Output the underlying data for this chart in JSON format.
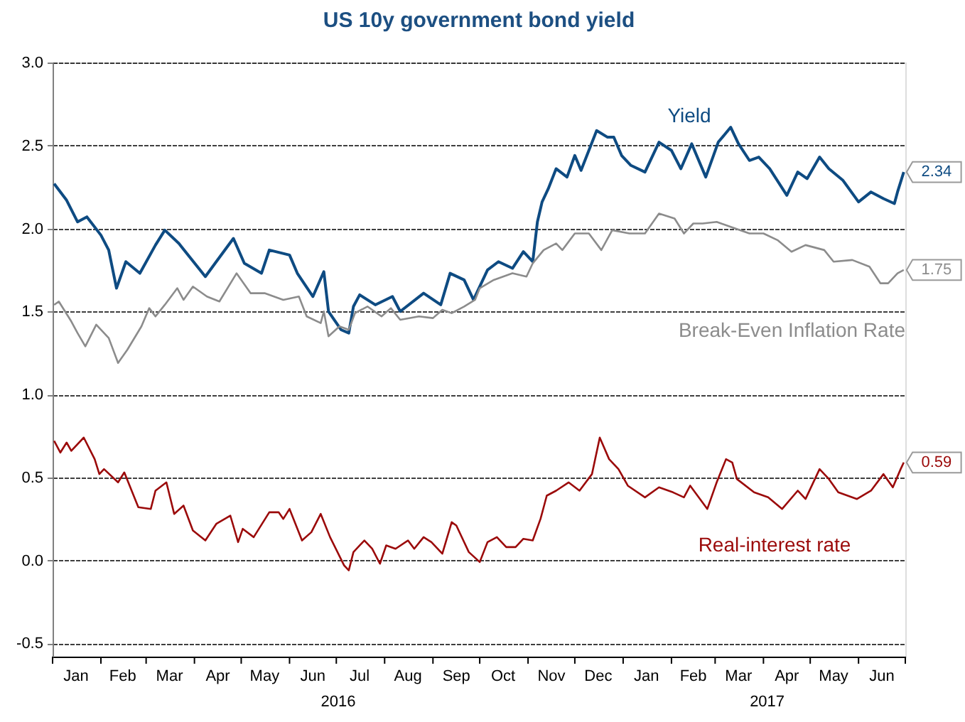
{
  "chart_data": {
    "type": "line",
    "title": "US 10y government bond yield",
    "xlim": [
      "2016-01-01",
      "2017-07-01"
    ],
    "xticks": [
      {
        "value": "2016-01-01",
        "label": null
      },
      {
        "value": "2016-02-01",
        "label": null
      },
      {
        "value": "2016-03-01",
        "label": null
      },
      {
        "value": "2016-04-01",
        "label": null
      },
      {
        "value": "2016-05-01",
        "label": null
      },
      {
        "value": "2016-06-01",
        "label": null
      },
      {
        "value": "2016-07-01",
        "label": null
      },
      {
        "value": "2016-08-01",
        "label": null
      },
      {
        "value": "2016-09-01",
        "label": null
      },
      {
        "value": "2016-10-01",
        "label": null
      },
      {
        "value": "2016-11-01",
        "label": null
      },
      {
        "value": "2016-12-01",
        "label": null
      },
      {
        "value": "2017-01-01",
        "label": null
      },
      {
        "value": "2017-02-01",
        "label": null
      },
      {
        "value": "2017-03-01",
        "label": null
      },
      {
        "value": "2017-04-01",
        "label": null
      },
      {
        "value": "2017-05-01",
        "label": null
      },
      {
        "value": "2017-06-01",
        "label": null
      },
      {
        "value": "2017-07-01",
        "label": null
      },
      {
        "value": "2016-01-16",
        "label": "Jan"
      },
      {
        "value": "2016-02-15",
        "label": "Feb"
      },
      {
        "value": "2016-03-16",
        "label": "Mar"
      },
      {
        "value": "2016-04-16",
        "label": "Apr"
      },
      {
        "value": "2016-05-16",
        "label": "May"
      },
      {
        "value": "2016-06-16",
        "label": "Jun"
      },
      {
        "value": "2016-07-16",
        "label": "Jul"
      },
      {
        "value": "2016-08-16",
        "label": "Aug"
      },
      {
        "value": "2016-09-16",
        "label": "Sep"
      },
      {
        "value": "2016-10-16",
        "label": "Oct"
      },
      {
        "value": "2016-11-16",
        "label": "Nov"
      },
      {
        "value": "2016-12-16",
        "label": "Dec"
      },
      {
        "value": "2017-01-16",
        "label": "Jan"
      },
      {
        "value": "2017-02-15",
        "label": "Feb"
      },
      {
        "value": "2017-03-16",
        "label": "Mar"
      },
      {
        "value": "2017-04-16",
        "label": "Apr"
      },
      {
        "value": "2017-05-16",
        "label": "May"
      },
      {
        "value": "2017-06-16",
        "label": "Jun"
      }
    ],
    "ylim": [
      -0.58,
      3.0
    ],
    "yticks": [
      {
        "value": -0.5,
        "label": "-0.5"
      },
      {
        "value": 0,
        "label": "0.0"
      },
      {
        "value": 0.5,
        "label": "0.5"
      },
      {
        "value": 1,
        "label": "1.0"
      },
      {
        "value": 1.5,
        "label": "1.5"
      },
      {
        "value": 2,
        "label": "2.0"
      },
      {
        "value": 2.5,
        "label": "2.5"
      },
      {
        "value": 3,
        "label": "3.0"
      }
    ],
    "grid": "y",
    "series": [
      {
        "name": "Yield",
        "color": "#0e4b82",
        "x": [
          "2016-01-02",
          "2016-01-10",
          "2016-01-17",
          "2016-01-23",
          "2016-02-01",
          "2016-02-06",
          "2016-02-11",
          "2016-02-17",
          "2016-02-26",
          "2016-03-07",
          "2016-03-13",
          "2016-03-22",
          "2016-04-08",
          "2016-04-15",
          "2016-04-26",
          "2016-05-03",
          "2016-05-14",
          "2016-05-19",
          "2016-06-01",
          "2016-06-06",
          "2016-06-16",
          "2016-06-23",
          "2016-06-26",
          "2016-07-04",
          "2016-07-09",
          "2016-07-12",
          "2016-07-16",
          "2016-07-26",
          "2016-08-06",
          "2016-08-11",
          "2016-08-26",
          "2016-09-06",
          "2016-09-12",
          "2016-09-21",
          "2016-09-27",
          "2016-10-06",
          "2016-10-13",
          "2016-10-22",
          "2016-10-29",
          "2016-11-04",
          "2016-11-07",
          "2016-11-10",
          "2016-11-14",
          "2016-11-19",
          "2016-11-26",
          "2016-12-01",
          "2016-12-05",
          "2016-12-15",
          "2016-12-22",
          "2016-12-26",
          "2016-12-31",
          "2017-01-06",
          "2017-01-15",
          "2017-01-24",
          "2017-02-01",
          "2017-02-07",
          "2017-02-14",
          "2017-02-23",
          "2017-03-03",
          "2017-03-11",
          "2017-03-16",
          "2017-03-23",
          "2017-03-29",
          "2017-04-05",
          "2017-04-16",
          "2017-04-23",
          "2017-04-29",
          "2017-05-07",
          "2017-05-13",
          "2017-05-22",
          "2017-06-01",
          "2017-06-09",
          "2017-06-17",
          "2017-06-24",
          "2017-06-26",
          "2017-06-30"
        ],
        "values": [
          2.27,
          2.17,
          2.04,
          2.07,
          1.96,
          1.87,
          1.64,
          1.8,
          1.73,
          1.9,
          1.99,
          1.91,
          1.71,
          1.8,
          1.94,
          1.79,
          1.73,
          1.87,
          1.84,
          1.73,
          1.59,
          1.74,
          1.5,
          1.39,
          1.37,
          1.53,
          1.6,
          1.54,
          1.59,
          1.5,
          1.61,
          1.54,
          1.73,
          1.69,
          1.57,
          1.75,
          1.8,
          1.76,
          1.86,
          1.8,
          2.04,
          2.16,
          2.24,
          2.36,
          2.31,
          2.44,
          2.35,
          2.59,
          2.55,
          2.55,
          2.44,
          2.38,
          2.34,
          2.52,
          2.47,
          2.36,
          2.51,
          2.31,
          2.52,
          2.61,
          2.51,
          2.41,
          2.43,
          2.36,
          2.2,
          2.34,
          2.3,
          2.43,
          2.36,
          2.29,
          2.16,
          2.22,
          2.18,
          2.15,
          2.22,
          2.34
        ]
      },
      {
        "name": "Break-Even Inflation Rate",
        "color": "#8c8c8c",
        "x": [
          "2016-01-02",
          "2016-01-05",
          "2016-01-13",
          "2016-01-17",
          "2016-01-22",
          "2016-01-29",
          "2016-02-06",
          "2016-02-12",
          "2016-02-18",
          "2016-02-27",
          "2016-03-03",
          "2016-03-07",
          "2016-03-13",
          "2016-03-21",
          "2016-03-25",
          "2016-03-31",
          "2016-04-09",
          "2016-04-17",
          "2016-04-28",
          "2016-05-07",
          "2016-05-16",
          "2016-05-28",
          "2016-06-07",
          "2016-06-12",
          "2016-06-21",
          "2016-06-23",
          "2016-06-26",
          "2016-07-03",
          "2016-07-09",
          "2016-07-13",
          "2016-07-21",
          "2016-07-30",
          "2016-08-05",
          "2016-08-11",
          "2016-08-23",
          "2016-09-01",
          "2016-09-07",
          "2016-09-13",
          "2016-09-21",
          "2016-09-28",
          "2016-10-01",
          "2016-10-10",
          "2016-10-22",
          "2016-10-31",
          "2016-11-04",
          "2016-11-11",
          "2016-11-19",
          "2016-11-23",
          "2016-12-01",
          "2016-12-10",
          "2016-12-18",
          "2016-12-25",
          "2017-01-05",
          "2017-01-15",
          "2017-01-24",
          "2017-02-03",
          "2017-02-09",
          "2017-02-15",
          "2017-02-21",
          "2017-03-02",
          "2017-03-11",
          "2017-03-23",
          "2017-04-01",
          "2017-04-10",
          "2017-04-19",
          "2017-04-28",
          "2017-05-10",
          "2017-05-16",
          "2017-05-28",
          "2017-06-08",
          "2017-06-15",
          "2017-06-20",
          "2017-06-26",
          "2017-06-30"
        ],
        "values": [
          1.54,
          1.56,
          1.44,
          1.37,
          1.29,
          1.42,
          1.34,
          1.19,
          1.27,
          1.41,
          1.52,
          1.47,
          1.54,
          1.64,
          1.57,
          1.65,
          1.59,
          1.56,
          1.73,
          1.61,
          1.61,
          1.57,
          1.59,
          1.47,
          1.43,
          1.5,
          1.35,
          1.41,
          1.39,
          1.49,
          1.53,
          1.47,
          1.52,
          1.45,
          1.47,
          1.46,
          1.51,
          1.49,
          1.53,
          1.57,
          1.64,
          1.69,
          1.73,
          1.71,
          1.79,
          1.87,
          1.91,
          1.87,
          1.97,
          1.97,
          1.87,
          1.99,
          1.97,
          1.97,
          2.09,
          2.06,
          1.97,
          2.03,
          2.03,
          2.04,
          2.01,
          1.97,
          1.97,
          1.93,
          1.86,
          1.9,
          1.87,
          1.8,
          1.81,
          1.77,
          1.67,
          1.67,
          1.73,
          1.75
        ]
      },
      {
        "name": "Real-interest rate",
        "color": "#9b0a0a",
        "x": [
          "2016-01-02",
          "2016-01-06",
          "2016-01-10",
          "2016-01-13",
          "2016-01-21",
          "2016-01-28",
          "2016-01-31",
          "2016-02-03",
          "2016-02-12",
          "2016-02-16",
          "2016-02-25",
          "2016-03-04",
          "2016-03-07",
          "2016-03-14",
          "2016-03-19",
          "2016-03-25",
          "2016-03-31",
          "2016-04-08",
          "2016-04-15",
          "2016-04-24",
          "2016-04-29",
          "2016-05-02",
          "2016-05-09",
          "2016-05-19",
          "2016-05-25",
          "2016-05-28",
          "2016-06-01",
          "2016-06-09",
          "2016-06-15",
          "2016-06-21",
          "2016-06-27",
          "2016-07-06",
          "2016-07-09",
          "2016-07-12",
          "2016-07-19",
          "2016-07-24",
          "2016-07-29",
          "2016-08-02",
          "2016-08-08",
          "2016-08-16",
          "2016-08-20",
          "2016-08-26",
          "2016-08-31",
          "2016-09-07",
          "2016-09-13",
          "2016-09-16",
          "2016-09-24",
          "2016-10-01",
          "2016-10-06",
          "2016-10-12",
          "2016-10-18",
          "2016-10-24",
          "2016-10-29",
          "2016-11-04",
          "2016-11-09",
          "2016-11-13",
          "2016-11-19",
          "2016-11-27",
          "2016-12-04",
          "2016-12-12",
          "2016-12-17",
          "2016-12-23",
          "2016-12-29",
          "2017-01-04",
          "2017-01-15",
          "2017-01-24",
          "2017-02-02",
          "2017-02-09",
          "2017-02-13",
          "2017-02-24",
          "2017-03-02",
          "2017-03-08",
          "2017-03-12",
          "2017-03-15",
          "2017-03-26",
          "2017-04-04",
          "2017-04-13",
          "2017-04-23",
          "2017-04-28",
          "2017-05-07",
          "2017-05-13",
          "2017-05-19",
          "2017-05-31",
          "2017-06-09",
          "2017-06-17",
          "2017-06-23",
          "2017-06-28",
          "2017-06-30"
        ],
        "values": [
          0.72,
          0.65,
          0.71,
          0.66,
          0.74,
          0.61,
          0.52,
          0.55,
          0.47,
          0.53,
          0.32,
          0.31,
          0.42,
          0.47,
          0.28,
          0.33,
          0.18,
          0.12,
          0.22,
          0.27,
          0.11,
          0.19,
          0.14,
          0.29,
          0.29,
          0.25,
          0.31,
          0.12,
          0.17,
          0.28,
          0.14,
          -0.03,
          -0.06,
          0.05,
          0.12,
          0.07,
          -0.02,
          0.09,
          0.07,
          0.12,
          0.07,
          0.14,
          0.11,
          0.04,
          0.23,
          0.21,
          0.05,
          -0.01,
          0.11,
          0.14,
          0.08,
          0.08,
          0.13,
          0.12,
          0.25,
          0.39,
          0.42,
          0.47,
          0.42,
          0.52,
          0.74,
          0.61,
          0.55,
          0.45,
          0.38,
          0.44,
          0.41,
          0.38,
          0.45,
          0.31,
          0.47,
          0.61,
          0.59,
          0.49,
          0.41,
          0.38,
          0.31,
          0.42,
          0.37,
          0.55,
          0.49,
          0.41,
          0.37,
          0.42,
          0.52,
          0.44,
          0.55,
          0.59
        ]
      }
    ],
    "annotations": [
      {
        "text": "2.34",
        "x": "2017-06-30",
        "y": 2.34
      },
      {
        "text": "1.75",
        "x": "2017-06-30",
        "y": 1.75
      },
      {
        "text": "0.59",
        "x": "2017-06-30",
        "y": 0.59
      },
      "2016",
      "2017"
    ]
  }
}
